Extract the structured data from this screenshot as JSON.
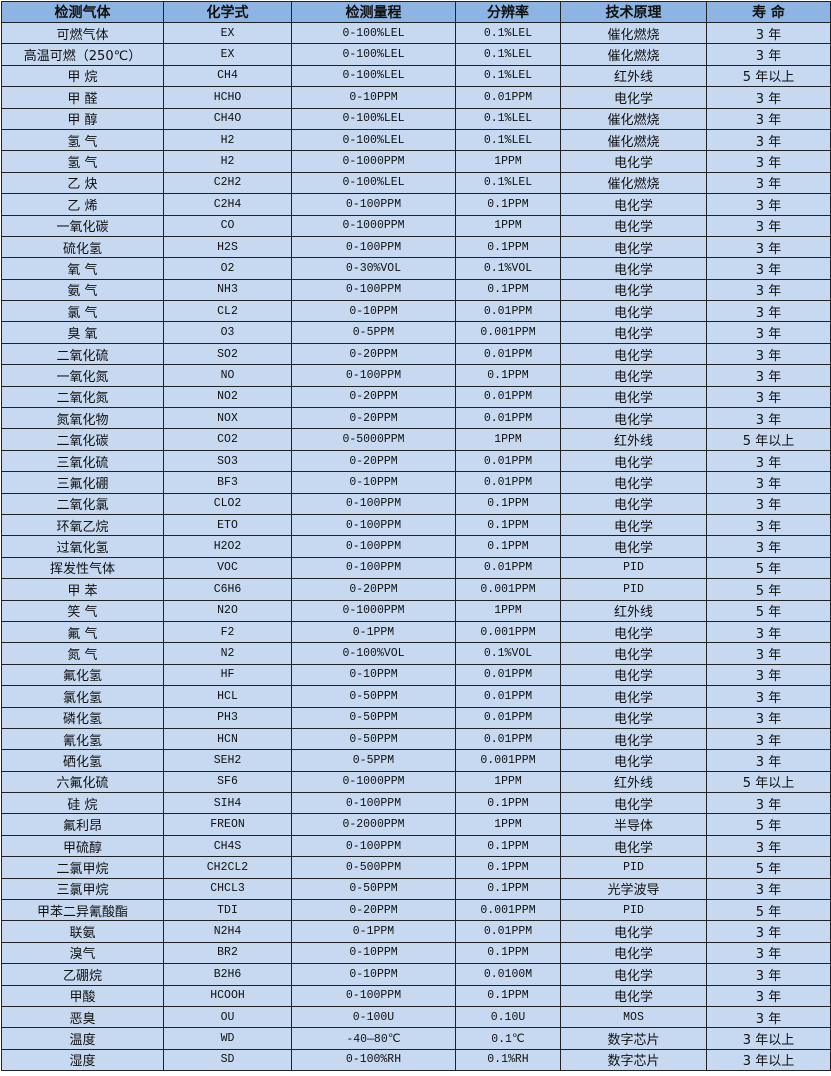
{
  "colors": {
    "header_bg": "#8db4e2",
    "row_bg": "#c6d9f1",
    "border": "#222222"
  },
  "headers": [
    "检测气体",
    "化学式",
    "检测量程",
    "分辨率",
    "技术原理",
    "寿 命"
  ],
  "rows": [
    [
      "可燃气体",
      "EX",
      "0-100%LEL",
      "0.1%LEL",
      "催化燃烧",
      "3 年"
    ],
    [
      "高温可燃（250℃）",
      "EX",
      "0-100%LEL",
      "0.1%LEL",
      "催化燃烧",
      "3 年"
    ],
    [
      "甲 烷",
      "CH4",
      "0-100%LEL",
      "0.1%LEL",
      "红外线",
      "5 年以上"
    ],
    [
      "甲 醛",
      "HCHO",
      "0-10PPM",
      "0.01PPM",
      "电化学",
      "3 年"
    ],
    [
      "甲 醇",
      "CH4O",
      "0-100%LEL",
      "0.1%LEL",
      "催化燃烧",
      "3 年"
    ],
    [
      "氢 气",
      "H2",
      "0-100%LEL",
      "0.1%LEL",
      "催化燃烧",
      "3 年"
    ],
    [
      "氢 气",
      "H2",
      "0-1000PPM",
      "1PPM",
      "电化学",
      "3 年"
    ],
    [
      "乙 炔",
      "C2H2",
      "0-100%LEL",
      "0.1%LEL",
      "催化燃烧",
      "3 年"
    ],
    [
      "乙 烯",
      "C2H4",
      "0-100PPM",
      "0.1PPM",
      "电化学",
      "3 年"
    ],
    [
      "一氧化碳",
      "CO",
      "0-1000PPM",
      "1PPM",
      "电化学",
      "3 年"
    ],
    [
      "硫化氢",
      "H2S",
      "0-100PPM",
      "0.1PPM",
      "电化学",
      "3 年"
    ],
    [
      "氧 气",
      "O2",
      "0-30%VOL",
      "0.1%VOL",
      "电化学",
      "3 年"
    ],
    [
      "氨 气",
      "NH3",
      "0-100PPM",
      "0.1PPM",
      "电化学",
      "3 年"
    ],
    [
      "氯 气",
      "CL2",
      "0-10PPM",
      "0.01PPM",
      "电化学",
      "3 年"
    ],
    [
      "臭 氧",
      "O3",
      "0-5PPM",
      "0.001PPM",
      "电化学",
      "3 年"
    ],
    [
      "二氧化硫",
      "SO2",
      "0-20PPM",
      "0.01PPM",
      "电化学",
      "3 年"
    ],
    [
      "一氧化氮",
      "NO",
      "0-100PPM",
      "0.1PPM",
      "电化学",
      "3 年"
    ],
    [
      "二氧化氮",
      "NO2",
      "0-20PPM",
      "0.01PPM",
      "电化学",
      "3 年"
    ],
    [
      "氮氧化物",
      "NOX",
      "0-20PPM",
      "0.01PPM",
      "电化学",
      "3 年"
    ],
    [
      "二氧化碳",
      "CO2",
      "0-5000PPM",
      "1PPM",
      "红外线",
      "5 年以上"
    ],
    [
      "三氧化硫",
      "SO3",
      "0-20PPM",
      "0.01PPM",
      "电化学",
      "3 年"
    ],
    [
      "三氟化硼",
      "BF3",
      "0-10PPM",
      "0.01PPM",
      "电化学",
      "3 年"
    ],
    [
      "二氧化氯",
      "CLO2",
      "0-100PPM",
      "0.1PPM",
      "电化学",
      "3 年"
    ],
    [
      "环氧乙烷",
      "ETO",
      "0-100PPM",
      "0.1PPM",
      "电化学",
      "3 年"
    ],
    [
      "过氧化氢",
      "H2O2",
      "0-100PPM",
      "0.1PPM",
      "电化学",
      "3 年"
    ],
    [
      "挥发性气体",
      "VOC",
      "0-100PPM",
      "0.01PPM",
      "PID",
      "5 年"
    ],
    [
      "甲 苯",
      "C6H6",
      "0-20PPM",
      "0.001PPM",
      "PID",
      "5 年"
    ],
    [
      "笑 气",
      "N2O",
      "0-1000PPM",
      "1PPM",
      "红外线",
      "5 年"
    ],
    [
      "氟 气",
      "F2",
      "0-1PPM",
      "0.001PPM",
      "电化学",
      "3 年"
    ],
    [
      "氮 气",
      "N2",
      "0-100%VOL",
      "0.1%VOL",
      "电化学",
      "3 年"
    ],
    [
      "氟化氢",
      "HF",
      "0-10PPM",
      "0.01PPM",
      "电化学",
      "3 年"
    ],
    [
      "氯化氢",
      "HCL",
      "0-50PPM",
      "0.01PPM",
      "电化学",
      "3 年"
    ],
    [
      "磷化氢",
      "PH3",
      "0-50PPM",
      "0.01PPM",
      "电化学",
      "3 年"
    ],
    [
      "氰化氢",
      "HCN",
      "0-50PPM",
      "0.01PPM",
      "电化学",
      "3 年"
    ],
    [
      "硒化氢",
      "SEH2",
      "0-5PPM",
      "0.001PPM",
      "电化学",
      "3 年"
    ],
    [
      "六氟化硫",
      "SF6",
      "0-1000PPM",
      "1PPM",
      "红外线",
      "5 年以上"
    ],
    [
      "硅 烷",
      "SIH4",
      "0-100PPM",
      "0.1PPM",
      "电化学",
      "3 年"
    ],
    [
      "氟利昂",
      "FREON",
      "0-2000PPM",
      "1PPM",
      "半导体",
      "5 年"
    ],
    [
      "甲硫醇",
      "CH4S",
      "0-100PPM",
      "0.1PPM",
      "电化学",
      "3 年"
    ],
    [
      "二氯甲烷",
      "CH2CL2",
      "0-500PPM",
      "0.1PPM",
      "PID",
      "5 年"
    ],
    [
      "三氯甲烷",
      "CHCL3",
      "0-50PPM",
      "0.1PPM",
      "光学波导",
      "3 年"
    ],
    [
      "甲苯二异氰酸酯",
      "TDI",
      "0-20PPM",
      "0.001PPM",
      "PID",
      "5 年"
    ],
    [
      "联氨",
      "N2H4",
      "0-1PPM",
      "0.01PPM",
      "电化学",
      "3 年"
    ],
    [
      "溴气",
      "BR2",
      "0-10PPM",
      "0.1PPM",
      "电化学",
      "3 年"
    ],
    [
      "乙硼烷",
      "B2H6",
      "0-10PPM",
      "0.0100M",
      "电化学",
      "3 年"
    ],
    [
      "甲酸",
      "HCOOH",
      "0-100PPM",
      "0.1PPM",
      "电化学",
      "3 年"
    ],
    [
      "恶臭",
      "OU",
      "0-100U",
      "0.10U",
      "MOS",
      "3 年"
    ],
    [
      "温度",
      "WD",
      "-40—80℃",
      "0.1℃",
      "数字芯片",
      "3 年以上"
    ],
    [
      "湿度",
      "SD",
      "0-100%RH",
      "0.1%RH",
      "数字芯片",
      "3 年以上"
    ]
  ]
}
